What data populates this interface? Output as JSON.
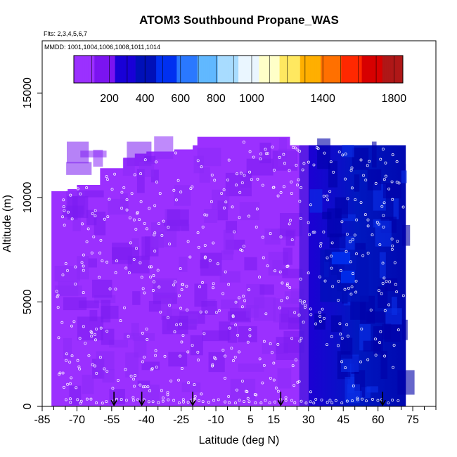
{
  "chart_data": {
    "type": "heatmap",
    "title": "ATOM3 Southbound Propane_WAS",
    "flights_note": "Flts: 2,3,4,5,6,7",
    "dates_note": "MMDD: 1001,1004,1006,1008,1011,1014",
    "xlabel": "Latitude (deg N)",
    "ylabel": "Altitude (m)",
    "xlim": [
      -85,
      85
    ],
    "ylim": [
      0,
      17500
    ],
    "x_ticks": [
      -85,
      -70,
      -55,
      -40,
      -25,
      -10,
      5,
      15,
      30,
      45,
      60,
      75
    ],
    "y_ticks": [
      0,
      5000,
      10000,
      15000
    ],
    "colorbar": {
      "ticks": [
        200,
        400,
        600,
        800,
        1000,
        1400,
        1800
      ],
      "range": [
        0,
        1850
      ],
      "colors": [
        "#9b30ff",
        "#7b14f0",
        "#1a00d8",
        "#0010b8",
        "#0030f0",
        "#2a78ff",
        "#62b8ff",
        "#a8dcff",
        "#eaf6ff",
        "#ffffc8",
        "#ffe860",
        "#ffb000",
        "#ff7000",
        "#ff2800",
        "#d80000",
        "#b01818"
      ]
    },
    "arrows_lat": [
      -54,
      -42,
      -20,
      18,
      62
    ],
    "region_boundary": [
      {
        "lat": -80,
        "top": 10300
      },
      {
        "lat": -74,
        "top": 10400
      },
      {
        "lat": -70,
        "top": 10600
      },
      {
        "lat": -60,
        "top": 11400
      },
      {
        "lat": -50,
        "top": 11900
      },
      {
        "lat": -45,
        "top": 12100
      },
      {
        "lat": -40,
        "top": 12200
      },
      {
        "lat": -28,
        "top": 12300
      },
      {
        "lat": -20,
        "top": 12500
      },
      {
        "lat": -18,
        "top": 12900
      },
      {
        "lat": 20,
        "top": 12900
      },
      {
        "lat": 22,
        "top": 12500
      },
      {
        "lat": 64,
        "top": 12500
      },
      {
        "lat": 68,
        "top": 12100
      },
      {
        "lat": 71,
        "top": 11600
      }
    ],
    "field": [
      {
        "lat_min": -81,
        "lat_max": 26,
        "alt_min": 0,
        "alt_max": 13000,
        "value": 90
      },
      {
        "lat_min": 26,
        "lat_max": 30,
        "alt_min": 0,
        "alt_max": 12500,
        "value": 130
      },
      {
        "lat_min": 30,
        "lat_max": 72,
        "alt_min": 0,
        "alt_max": 12500,
        "value": 220
      },
      {
        "lat_min": 35,
        "lat_max": 56,
        "alt_min": 5000,
        "alt_max": 7500,
        "value": 360
      },
      {
        "lat_min": 40,
        "lat_max": 48,
        "alt_min": 6800,
        "alt_max": 7400,
        "value": 560
      },
      {
        "lat_min": 44,
        "lat_max": 50,
        "alt_min": 5900,
        "alt_max": 6500,
        "value": 480
      }
    ]
  }
}
